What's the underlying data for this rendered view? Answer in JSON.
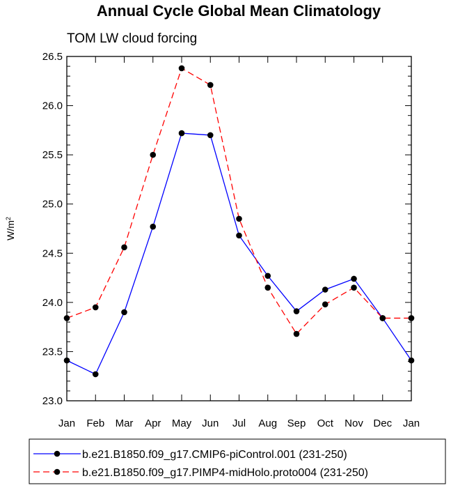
{
  "chart_data": {
    "type": "line",
    "title": "Annual Cycle Global Mean Climatology",
    "subtitle": "TOM LW cloud forcing",
    "ylabel": "W/m",
    "ylabel_superscript": "2",
    "xlabel": "",
    "ylim": [
      23.0,
      26.5
    ],
    "yticks": [
      "23.0",
      "23.5",
      "24.0",
      "24.5",
      "25.0",
      "25.5",
      "26.0",
      "26.5"
    ],
    "categories": [
      "Jan",
      "Feb",
      "Mar",
      "Apr",
      "May",
      "Jun",
      "Jul",
      "Aug",
      "Sep",
      "Oct",
      "Nov",
      "Dec",
      "Jan"
    ],
    "series": [
      {
        "name": "b.e21.B1850.f09_g17.CMIP6-piControl.001 (231-250)",
        "color": "#0000ff",
        "dash": "solid",
        "values": [
          23.41,
          23.27,
          23.9,
          24.77,
          25.72,
          25.7,
          24.68,
          24.27,
          23.91,
          24.13,
          24.24,
          23.84,
          23.41
        ]
      },
      {
        "name": "b.e21.B1850.f09_g17.PIMP4-midHolo.proto004 (231-250)",
        "color": "#ff0000",
        "dash": "dashed",
        "values": [
          23.84,
          23.95,
          24.56,
          25.5,
          26.38,
          26.21,
          24.85,
          24.15,
          23.68,
          23.98,
          24.15,
          23.84,
          23.84
        ]
      }
    ],
    "legend_position": "bottom",
    "grid": false
  }
}
